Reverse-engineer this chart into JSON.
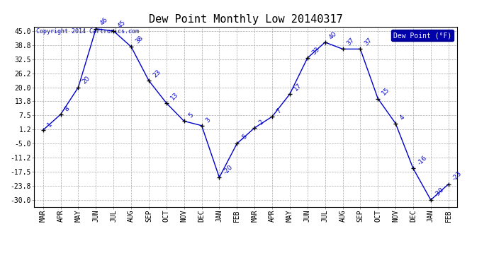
{
  "title": "Dew Point Monthly Low 20140317",
  "copyright": "Copyright 2014 Cartronics.com",
  "legend_label": "Dew Point (°F)",
  "months": [
    "MAR",
    "APR",
    "MAY",
    "JUN",
    "JUL",
    "AUG",
    "SEP",
    "OCT",
    "NOV",
    "DEC",
    "JAN",
    "FEB",
    "MAR",
    "APR",
    "MAY",
    "JUN",
    "JUL",
    "AUG",
    "SEP",
    "OCT",
    "NOV",
    "DEC",
    "JAN",
    "FEB"
  ],
  "values": [
    1,
    8,
    20,
    46,
    45,
    38,
    23,
    13,
    5,
    3,
    -20,
    -5,
    2,
    7,
    17,
    33,
    40,
    37,
    37,
    15,
    4,
    -16,
    -30,
    -23
  ],
  "yticks": [
    45.0,
    38.8,
    32.5,
    26.2,
    20.0,
    13.8,
    7.5,
    1.2,
    -5.0,
    -11.2,
    -17.5,
    -23.8,
    -30.0
  ],
  "line_color": "#0000CC",
  "marker_color": "#000000",
  "bg_color": "#ffffff",
  "grid_color": "#aaaaaa",
  "title_fontsize": 11,
  "label_fontsize": 6.5,
  "tick_fontsize": 7,
  "legend_bg": "#0000AA",
  "legend_text_color": "#ffffff",
  "ylim": [
    -33,
    47
  ],
  "copyright_color": "#0000AA",
  "copyright_fontsize": 6
}
